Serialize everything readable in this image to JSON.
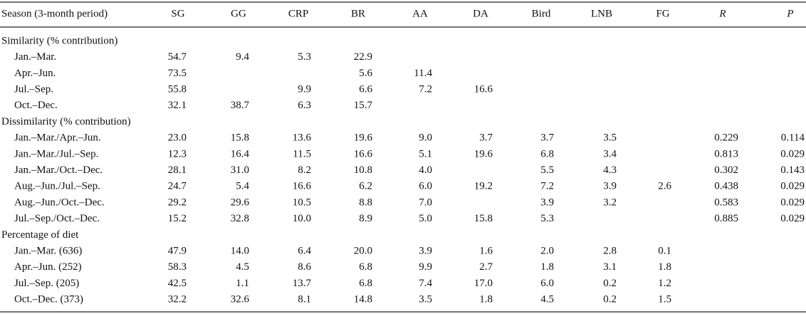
{
  "table": {
    "header": [
      "Season (3-month period)",
      "SG",
      "GG",
      "CRP",
      "BR",
      "AA",
      "DA",
      "Bird",
      "LNB",
      "FG",
      "R",
      "P"
    ],
    "sections": [
      {
        "title": "Similarity (% contribution)",
        "rows": [
          {
            "label": "Jan.–Mar.",
            "cells": [
              "54.7",
              "9.4",
              "5.3",
              "22.9",
              null,
              null,
              null,
              null,
              null,
              null,
              null
            ]
          },
          {
            "label": "Apr.–Jun.",
            "cells": [
              "73.5",
              null,
              null,
              "5.6",
              "11.4",
              null,
              null,
              null,
              null,
              null,
              null
            ]
          },
          {
            "label": "Jul.–Sep.",
            "cells": [
              "55.8",
              null,
              "9.9",
              "6.6",
              "7.2",
              "16.6",
              null,
              null,
              null,
              null,
              null
            ]
          },
          {
            "label": "Oct.–Dec.",
            "cells": [
              "32.1",
              "38.7",
              "6.3",
              "15.7",
              null,
              null,
              null,
              null,
              null,
              null,
              null
            ]
          }
        ]
      },
      {
        "title": "Dissimilarity (% contribution)",
        "rows": [
          {
            "label": "Jan.–Mar./Apr.–Jun.",
            "cells": [
              "23.0",
              "15.8",
              "13.6",
              "19.6",
              "9.0",
              "3.7",
              "3.7",
              "3.5",
              null,
              "0.229",
              "0.114"
            ]
          },
          {
            "label": "Jan.–Mar./Jul.–Sep.",
            "cells": [
              "12.3",
              "16.4",
              "11.5",
              "16.6",
              "5.1",
              "19.6",
              "6.8",
              "3.4",
              null,
              "0.813",
              "0.029"
            ]
          },
          {
            "label": "Jan.–Mar./Oct.–Dec.",
            "cells": [
              "28.1",
              "31.0",
              "8.2",
              "10.8",
              "4.0",
              null,
              "5.5",
              "4.3",
              null,
              "0.302",
              "0.143"
            ]
          },
          {
            "label": "Aug.–Jun./Jul.–Sep.",
            "cells": [
              "24.7",
              "5.4",
              "16.6",
              "6.2",
              "6.0",
              "19.2",
              "7.2",
              "3.9",
              "2.6",
              "0.438",
              "0.029"
            ]
          },
          {
            "label": "Aug.–Jun./Oct.–Dec.",
            "cells": [
              "29.2",
              "29.6",
              "10.5",
              "8.8",
              "7.0",
              null,
              "3.9",
              "3.2",
              null,
              "0.583",
              "0.029"
            ]
          },
          {
            "label": "Jul.–Sep./Oct.–Dec.",
            "cells": [
              "15.2",
              "32.8",
              "10.0",
              "8.9",
              "5.0",
              "15.8",
              "5.3",
              null,
              null,
              "0.885",
              "0.029"
            ]
          }
        ]
      },
      {
        "title": "Percentage of diet",
        "rows": [
          {
            "label": "Jan.–Mar. (636)",
            "cells": [
              "47.9",
              "14.0",
              "6.4",
              "20.0",
              "3.9",
              "1.6",
              "2.0",
              "2.8",
              "0.1",
              null,
              null
            ]
          },
          {
            "label": "Apr.–Jun. (252)",
            "cells": [
              "58.3",
              "4.5",
              "8.6",
              "6.8",
              "9.9",
              "2.7",
              "1.8",
              "3.1",
              "1.8",
              null,
              null
            ]
          },
          {
            "label": "Jul.–Sep. (205)",
            "cells": [
              "42.5",
              "1.1",
              "13.7",
              "6.8",
              "7.4",
              "17.0",
              "6.0",
              "0.2",
              "1.2",
              null,
              null
            ]
          },
          {
            "label": "Oct.–Dec. (373)",
            "cells": [
              "32.2",
              "32.6",
              "8.1",
              "14.8",
              "3.5",
              "1.8",
              "4.5",
              "0.2",
              "1.5",
              null,
              null
            ]
          }
        ]
      }
    ]
  }
}
